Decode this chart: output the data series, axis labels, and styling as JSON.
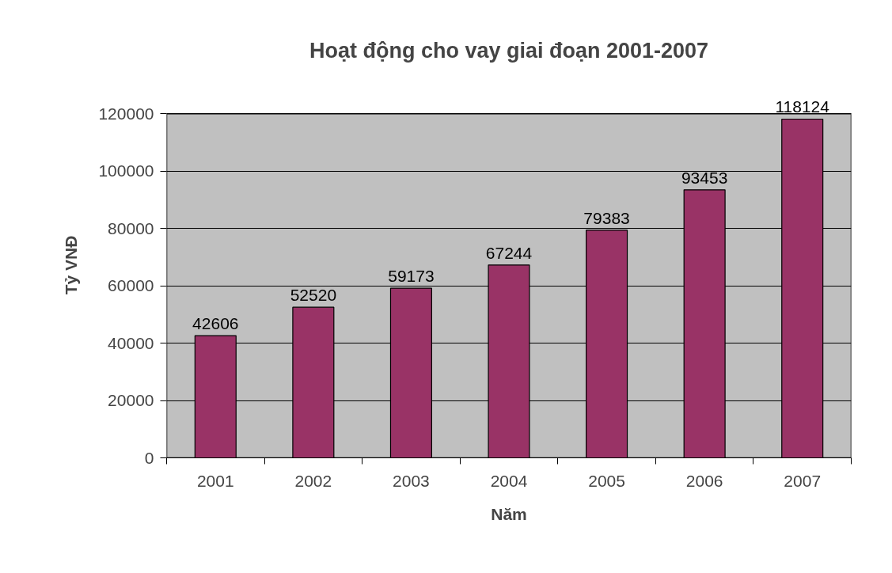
{
  "chart_data": {
    "type": "bar",
    "title": "Hoạt động cho vay giai đoạn 2001-2007",
    "xlabel": "Năm",
    "ylabel": "Tỷ VNĐ",
    "categories": [
      "2001",
      "2002",
      "2003",
      "2004",
      "2005",
      "2006",
      "2007"
    ],
    "series": [
      {
        "color": "#993366",
        "values": [
          42606,
          52520,
          59173,
          67244,
          79383,
          93453,
          118124
        ]
      }
    ],
    "ylim": [
      0,
      120000
    ],
    "yticks": [
      0,
      20000,
      40000,
      60000,
      80000,
      100000,
      120000
    ],
    "grid": "y",
    "data_labels": true
  }
}
